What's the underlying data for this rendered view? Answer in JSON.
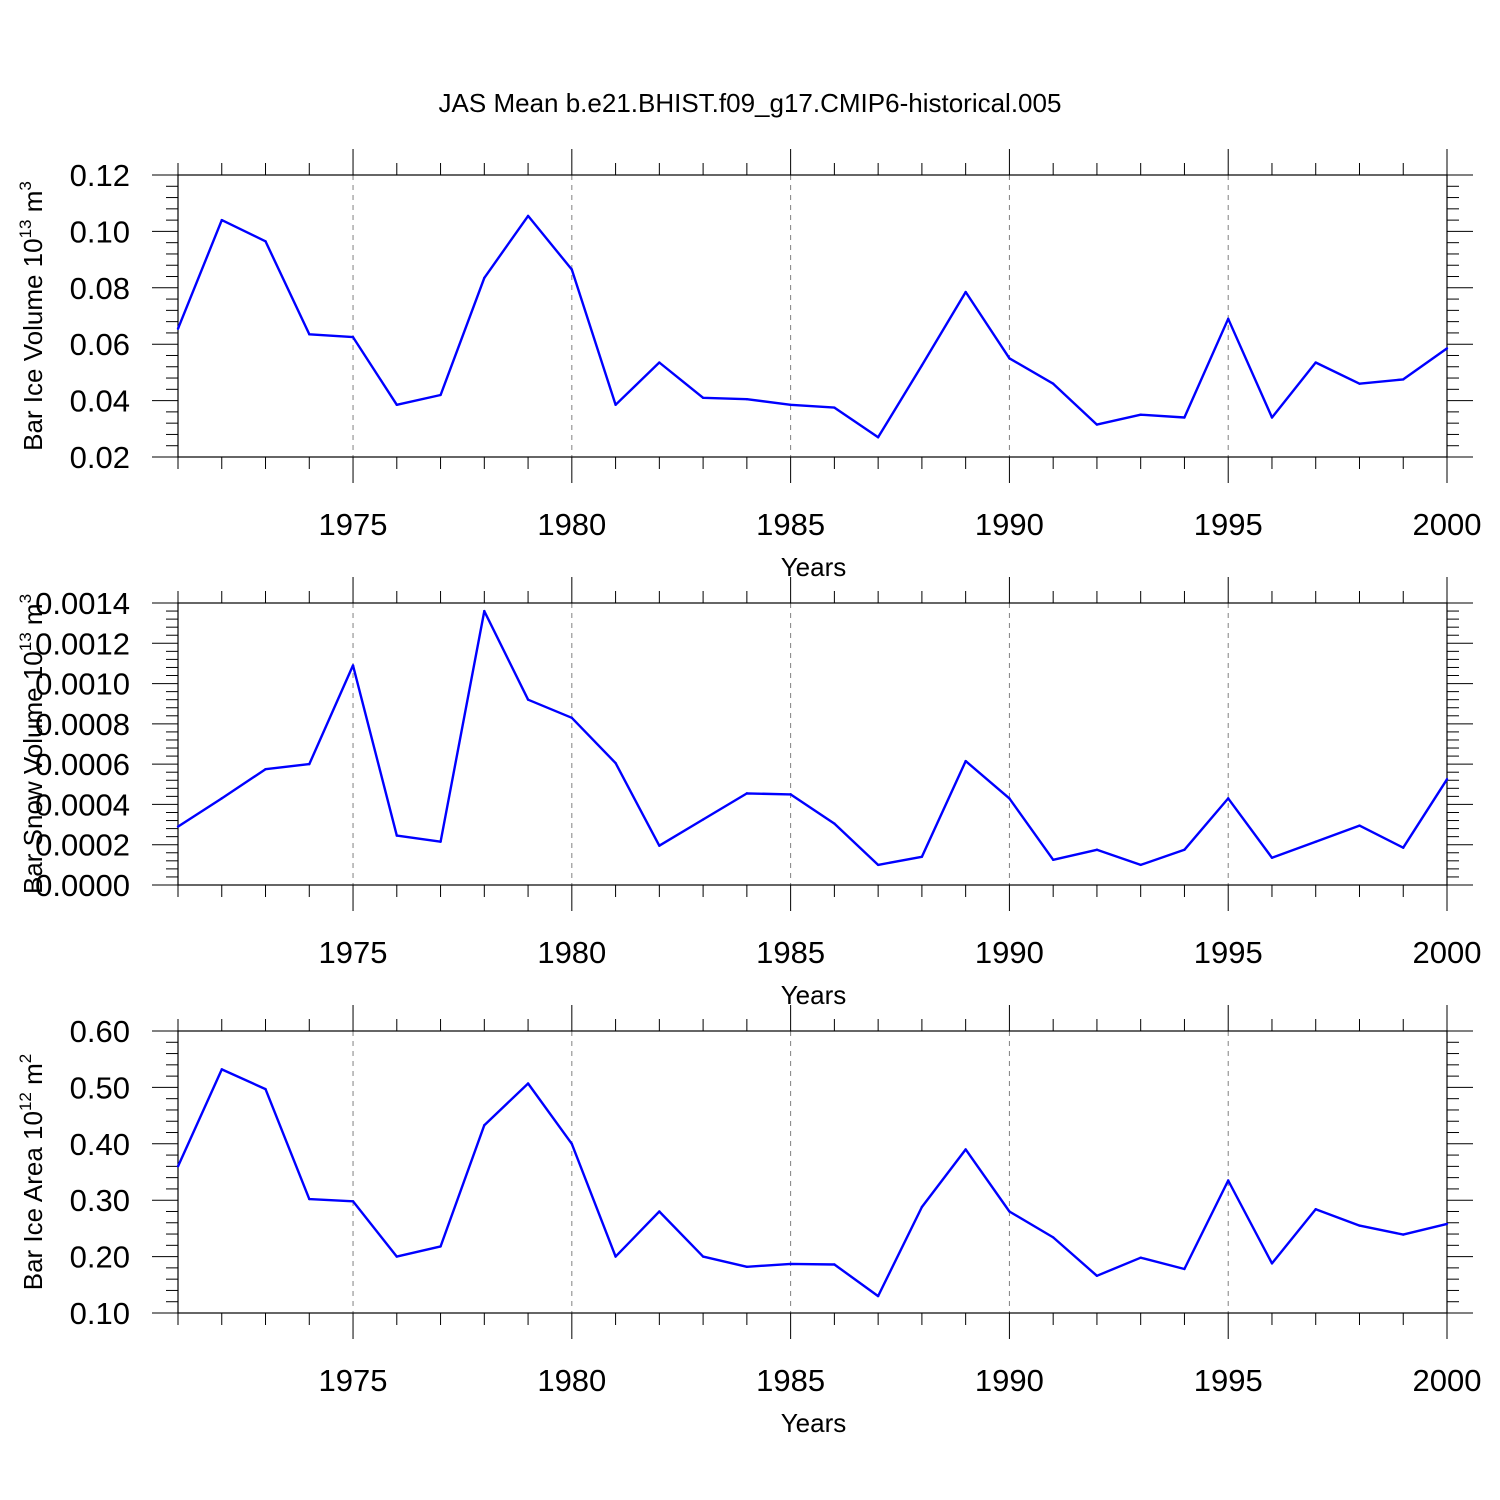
{
  "title": "JAS Mean b.e21.BHIST.f09_g17.CMIP6-historical.005",
  "colors": {
    "series": "#0000ff",
    "axis": "#000000",
    "grid": "#808080"
  },
  "chart_data": [
    {
      "type": "line",
      "ylabel": {
        "main": "Bar Ice Volume 10",
        "exp": "13",
        "unit": " m",
        "unit_exp": "3"
      },
      "xlabel": "Years",
      "xlim": [
        1971,
        2000
      ],
      "ylim": [
        0.02,
        0.12
      ],
      "x_ticks": [
        1975,
        1980,
        1985,
        1990,
        1995,
        2000
      ],
      "y_ticks": [
        "0.02",
        "0.04",
        "0.06",
        "0.08",
        "0.10",
        "0.12"
      ],
      "vertical_grid": "dashed",
      "x": [
        1971,
        1972,
        1973,
        1974,
        1975,
        1976,
        1977,
        1978,
        1979,
        1980,
        1981,
        1982,
        1983,
        1984,
        1985,
        1986,
        1987,
        1988,
        1989,
        1990,
        1991,
        1992,
        1993,
        1994,
        1995,
        1996,
        1997,
        1998,
        1999,
        2000
      ],
      "values": [
        0.0655,
        0.104,
        0.0965,
        0.0635,
        0.0625,
        0.0385,
        0.042,
        0.0835,
        0.1055,
        0.0865,
        0.0385,
        0.0535,
        0.041,
        0.0405,
        0.0385,
        0.0375,
        0.027,
        0.0525,
        0.0785,
        0.055,
        0.046,
        0.0315,
        0.035,
        0.034,
        0.069,
        0.034,
        0.0535,
        0.046,
        0.0475,
        0.0585
      ]
    },
    {
      "type": "line",
      "ylabel": {
        "main": "Bar Snow Volume 10",
        "exp": "13",
        "unit": " m",
        "unit_exp": "3"
      },
      "xlabel": "Years",
      "xlim": [
        1971,
        2000
      ],
      "ylim": [
        0.0,
        0.0014
      ],
      "x_ticks": [
        1975,
        1980,
        1985,
        1990,
        1995,
        2000
      ],
      "y_ticks": [
        "0.0000",
        "0.0002",
        "0.0004",
        "0.0006",
        "0.0008",
        "0.0010",
        "0.0012",
        "0.0014"
      ],
      "vertical_grid": "dashed",
      "x": [
        1971,
        1972,
        1973,
        1974,
        1975,
        1976,
        1977,
        1978,
        1979,
        1980,
        1981,
        1982,
        1983,
        1984,
        1985,
        1986,
        1987,
        1988,
        1989,
        1990,
        1991,
        1992,
        1993,
        1994,
        1995,
        1996,
        1997,
        1998,
        1999,
        2000
      ],
      "values": [
        0.00029,
        0.00043,
        0.000575,
        0.0006,
        0.00109,
        0.000245,
        0.000215,
        0.00136,
        0.00092,
        0.00083,
        0.000605,
        0.000195,
        0.000325,
        0.000455,
        0.00045,
        0.000305,
        0.0001,
        0.00014,
        0.000615,
        0.00043,
        0.000125,
        0.000175,
        0.0001,
        0.000175,
        0.00043,
        0.000135,
        0.000215,
        0.000295,
        0.000185,
        0.000525
      ]
    },
    {
      "type": "line",
      "ylabel": {
        "main": "Bar Ice Area 10",
        "exp": "12",
        "unit": " m",
        "unit_exp": "2"
      },
      "xlabel": "Years",
      "xlim": [
        1971,
        2000
      ],
      "ylim": [
        0.1,
        0.6
      ],
      "x_ticks": [
        1975,
        1980,
        1985,
        1990,
        1995,
        2000
      ],
      "y_ticks": [
        "0.10",
        "0.20",
        "0.30",
        "0.40",
        "0.50",
        "0.60"
      ],
      "vertical_grid": "dashed",
      "x": [
        1971,
        1972,
        1973,
        1974,
        1975,
        1976,
        1977,
        1978,
        1979,
        1980,
        1981,
        1982,
        1983,
        1984,
        1985,
        1986,
        1987,
        1988,
        1989,
        1990,
        1991,
        1992,
        1993,
        1994,
        1995,
        1996,
        1997,
        1998,
        1999,
        2000
      ],
      "values": [
        0.36,
        0.532,
        0.497,
        0.302,
        0.298,
        0.2,
        0.218,
        0.433,
        0.507,
        0.4,
        0.2,
        0.28,
        0.2,
        0.182,
        0.187,
        0.186,
        0.13,
        0.288,
        0.39,
        0.28,
        0.234,
        0.166,
        0.198,
        0.178,
        0.335,
        0.188,
        0.284,
        0.255,
        0.239,
        0.258
      ]
    }
  ]
}
